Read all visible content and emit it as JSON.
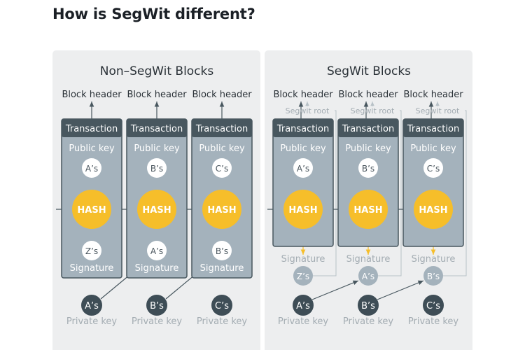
{
  "page": {
    "title": "How is SegWit different?"
  },
  "colors": {
    "panel": "#edeeef",
    "box_fill": "#a4b2bc",
    "box_border": "#48575f",
    "header_fill": "#48575f",
    "hash": "#f6be2a",
    "dark_node": "#3e4d56",
    "light_node": "#a4b2bc",
    "arrow_dark": "#48575f",
    "arrow_orange": "#f6be2a",
    "muted_text": "#a3acb2"
  },
  "panels": {
    "nonsegwit": {
      "title": "Non–SegWit Blocks",
      "blocks": [
        {
          "block_header": "Block header",
          "transaction": "Transaction",
          "public_key": "Public key",
          "pub_node": "A’s",
          "hash": "HASH",
          "sig_node": "Z’s",
          "signature": "Signature",
          "priv_node": "A’s",
          "private_key": "Private key"
        },
        {
          "block_header": "Block header",
          "transaction": "Transaction",
          "public_key": "Public key",
          "pub_node": "B’s",
          "hash": "HASH",
          "sig_node": "A’s",
          "signature": "Signature",
          "priv_node": "B’s",
          "private_key": "Private key"
        },
        {
          "block_header": "Block header",
          "transaction": "Transaction",
          "public_key": "Public key",
          "pub_node": "C’s",
          "hash": "HASH",
          "sig_node": "B’s",
          "signature": "Signature",
          "priv_node": "C’s",
          "private_key": "Private key"
        }
      ]
    },
    "segwit": {
      "title": "SegWit Blocks",
      "blocks": [
        {
          "block_header": "Block header",
          "segwit_root": "Segwit root",
          "transaction": "Transaction",
          "public_key": "Public key",
          "pub_node": "A’s",
          "hash": "HASH",
          "signature": "Signature",
          "sig_node": "Z’s",
          "priv_node": "A’s",
          "private_key": "Private key"
        },
        {
          "block_header": "Block header",
          "segwit_root": "Segwit root",
          "transaction": "Transaction",
          "public_key": "Public key",
          "pub_node": "B’s",
          "hash": "HASH",
          "signature": "Signature",
          "sig_node": "A’s",
          "priv_node": "B’s",
          "private_key": "Private key"
        },
        {
          "block_header": "Block header",
          "segwit_root": "Segwit root",
          "transaction": "Transaction",
          "public_key": "Public key",
          "pub_node": "C’s",
          "hash": "HASH",
          "signature": "Signature",
          "sig_node": "B’s",
          "priv_node": "C’s",
          "private_key": "Private key"
        }
      ]
    }
  }
}
